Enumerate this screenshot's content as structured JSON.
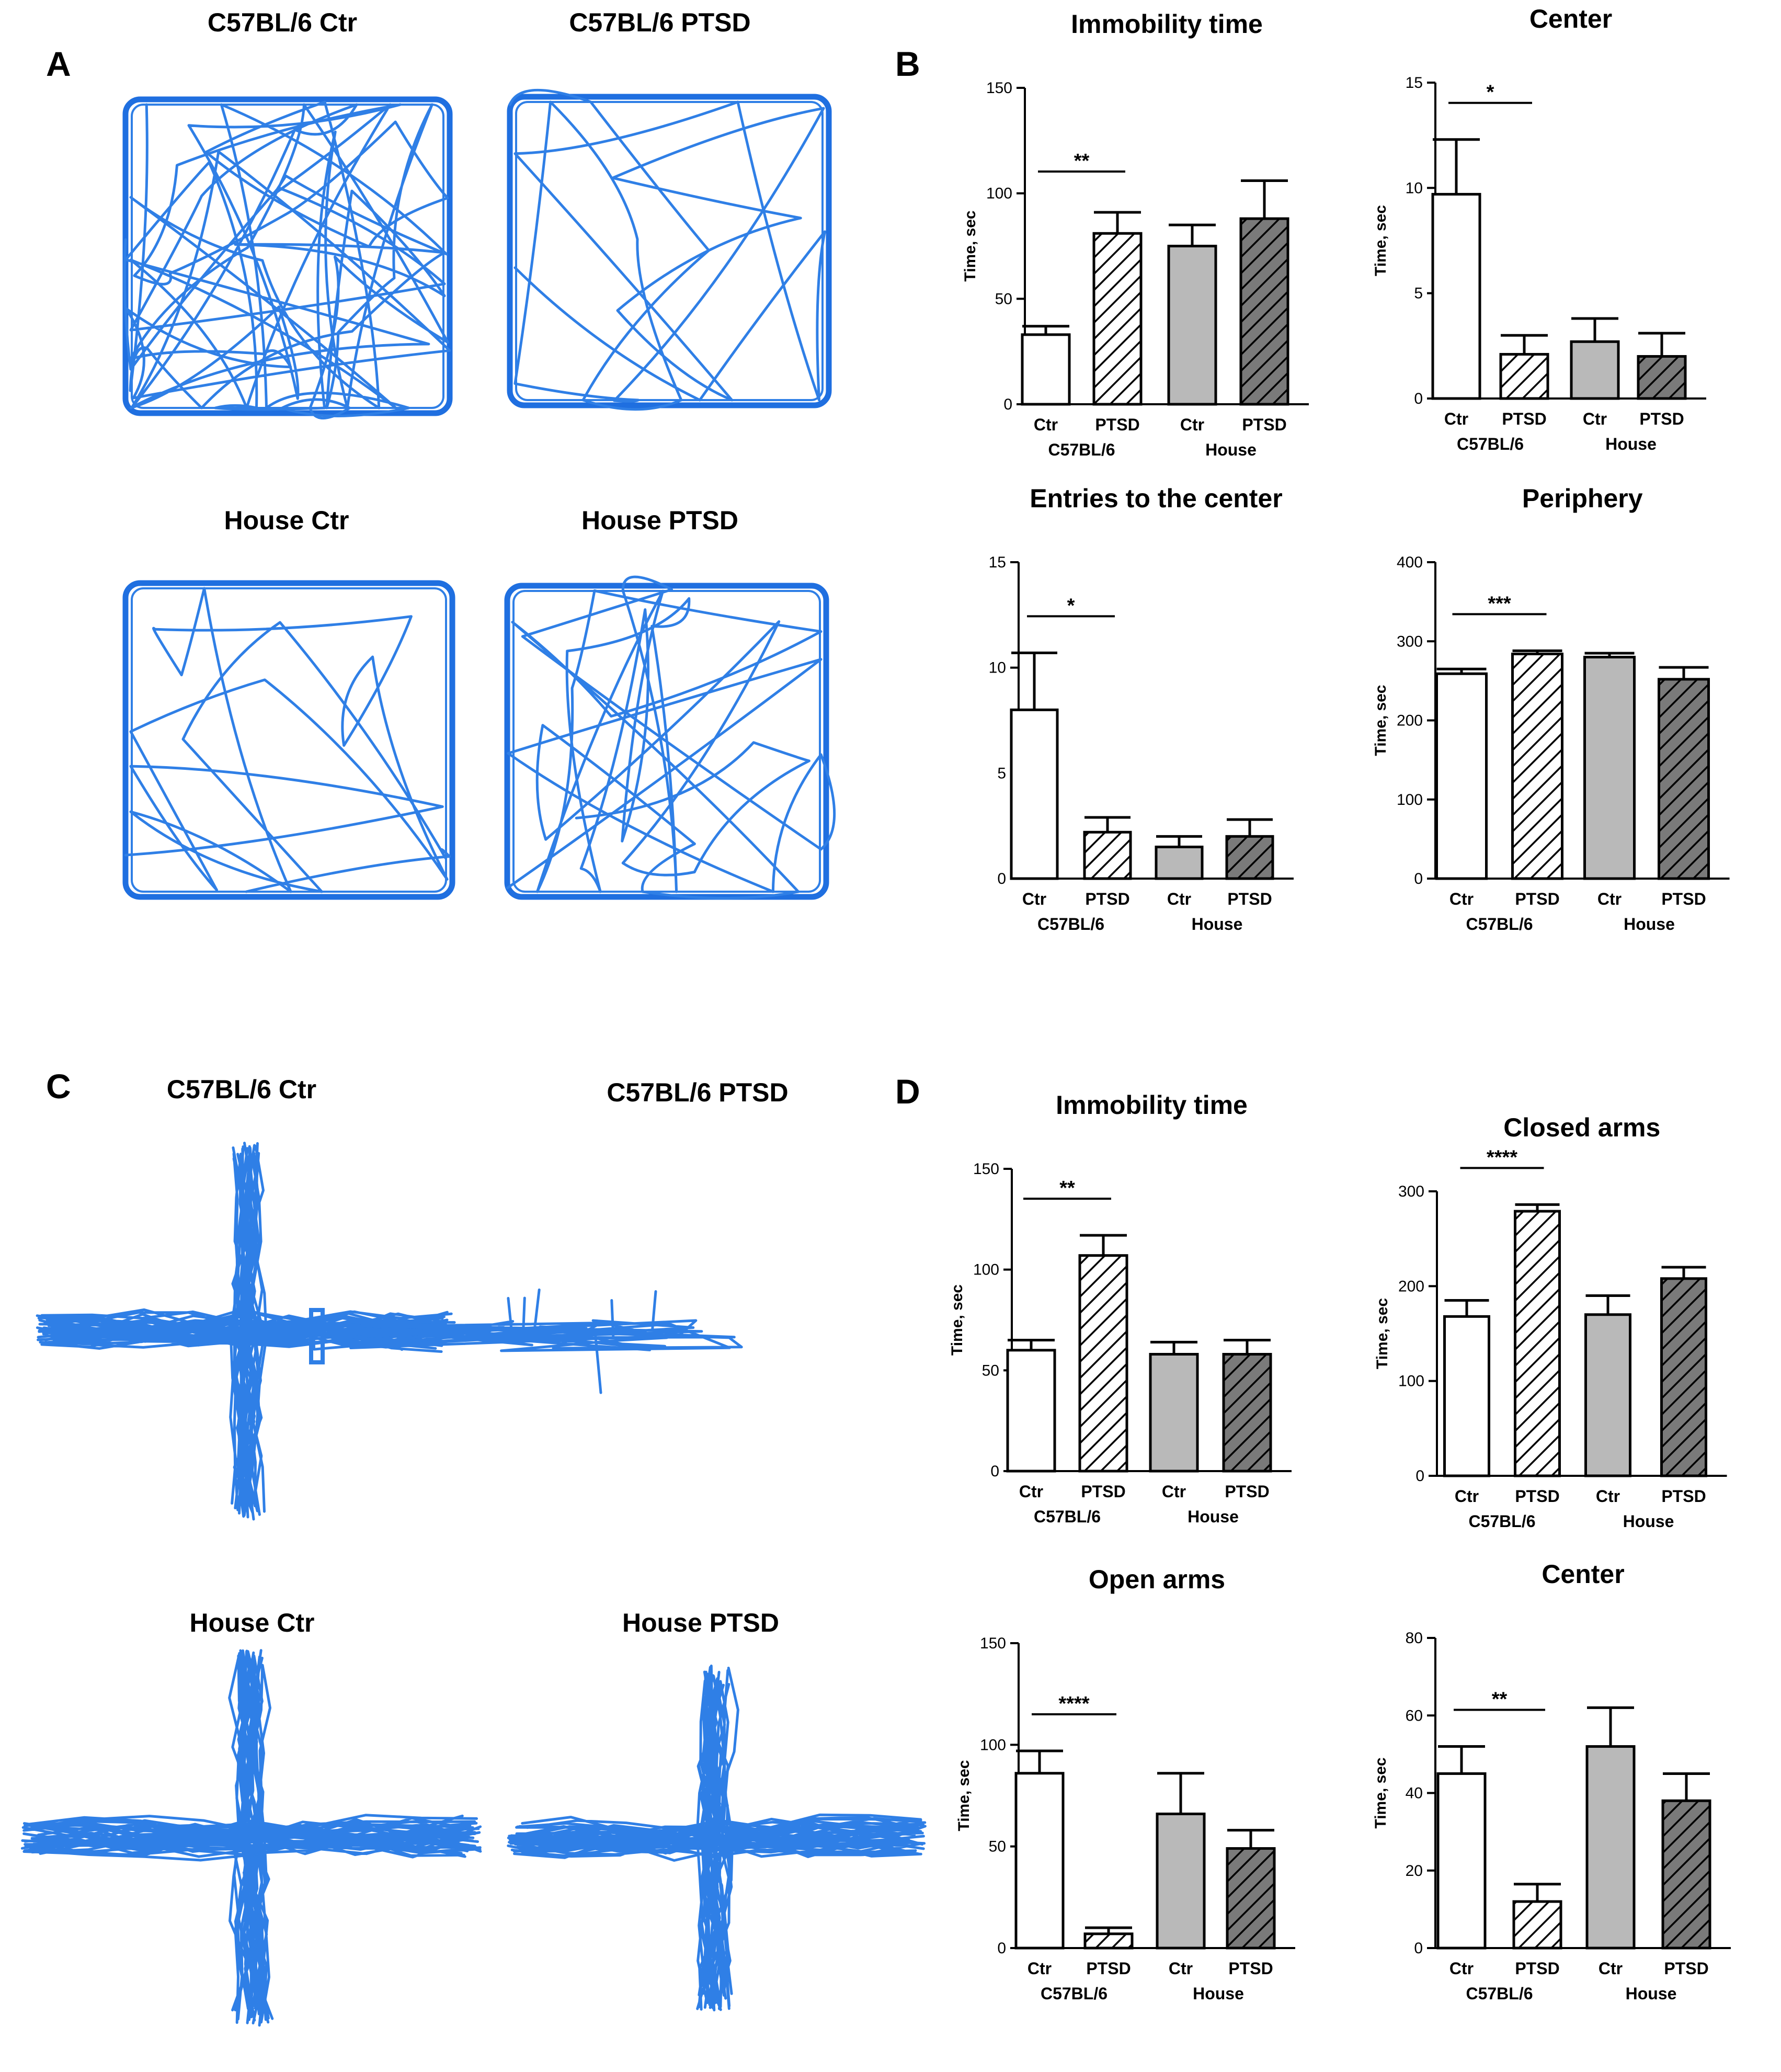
{
  "panels": {
    "A": {
      "letter": "A",
      "tracks": [
        {
          "title": "C57BL/6 Ctr",
          "density": "high"
        },
        {
          "title": "C57BL/6 PTSD",
          "density": "low"
        },
        {
          "title": "House Ctr",
          "density": "low"
        },
        {
          "title": "House PTSD",
          "density": "medium"
        }
      ]
    },
    "B": {
      "letter": "B"
    },
    "C": {
      "letter": "C",
      "tracks": [
        {
          "title": "C57BL/6 Ctr",
          "density": "high"
        },
        {
          "title": "C57BL/6 PTSD",
          "density": "closed-only"
        },
        {
          "title": "House Ctr",
          "density": "high"
        },
        {
          "title": "House PTSD",
          "density": "high"
        }
      ]
    },
    "D": {
      "letter": "D"
    }
  },
  "colors": {
    "track": "#2f7fe6",
    "bar_ctr_c57": "#ffffff",
    "bar_house_ctr": "#b9b9b9",
    "bar_house_ptsd": "#7a7a7a",
    "hatch": "#000000"
  },
  "chart_data": [
    {
      "panel": "B",
      "type": "bar",
      "title": "Immobility time",
      "ylabel": "Time, sec",
      "ylim": [
        0,
        150
      ],
      "yticks": [
        0,
        50,
        100,
        150
      ],
      "categories": [
        "Ctr",
        "PTSD",
        "Ctr",
        "PTSD"
      ],
      "groups": [
        "C57BL/6",
        "House"
      ],
      "values": [
        33,
        81,
        75,
        88
      ],
      "errors": [
        4,
        10,
        10,
        18
      ],
      "significance": {
        "label": "**",
        "between": [
          0,
          1
        ]
      }
    },
    {
      "panel": "B",
      "type": "bar",
      "title": "Center",
      "ylabel": "Time, sec",
      "ylim": [
        0,
        15
      ],
      "yticks": [
        0,
        5,
        10,
        15
      ],
      "categories": [
        "Ctr",
        "PTSD",
        "Ctr",
        "PTSD"
      ],
      "groups": [
        "C57BL/6",
        "House"
      ],
      "values": [
        9.7,
        2.1,
        2.7,
        2.0
      ],
      "errors": [
        2.6,
        0.9,
        1.1,
        1.1
      ],
      "significance": {
        "label": "*",
        "between": [
          0,
          1
        ]
      }
    },
    {
      "panel": "B",
      "type": "bar",
      "title": "Entries to the center",
      "ylabel": "",
      "ylim": [
        0,
        15
      ],
      "yticks": [
        0,
        5,
        10,
        15
      ],
      "categories": [
        "Ctr",
        "PTSD",
        "Ctr",
        "PTSD"
      ],
      "groups": [
        "C57BL/6",
        "House"
      ],
      "values": [
        8.0,
        2.2,
        1.5,
        2.0
      ],
      "errors": [
        2.7,
        0.7,
        0.5,
        0.8
      ],
      "significance": {
        "label": "*",
        "between": [
          0,
          1
        ]
      }
    },
    {
      "panel": "B",
      "type": "bar",
      "title": "Periphery",
      "ylabel": "Time, sec",
      "ylim": [
        0,
        400
      ],
      "yticks": [
        0,
        100,
        200,
        300,
        400
      ],
      "categories": [
        "Ctr",
        "PTSD",
        "Ctr",
        "PTSD"
      ],
      "groups": [
        "C57BL/6",
        "House"
      ],
      "values": [
        259,
        284,
        280,
        252
      ],
      "errors": [
        6,
        4,
        5,
        15
      ],
      "significance": {
        "label": "***",
        "between": [
          0,
          1
        ]
      }
    },
    {
      "panel": "D",
      "type": "bar",
      "title": "Immobility time",
      "ylabel": "Time, sec",
      "ylim": [
        0,
        150
      ],
      "yticks": [
        0,
        50,
        100,
        150
      ],
      "categories": [
        "Ctr",
        "PTSD",
        "Ctr",
        "PTSD"
      ],
      "groups": [
        "C57BL/6",
        "House"
      ],
      "values": [
        60,
        107,
        58,
        58
      ],
      "errors": [
        5,
        10,
        6,
        7
      ],
      "significance": {
        "label": "**",
        "between": [
          0,
          1
        ]
      }
    },
    {
      "panel": "D",
      "type": "bar",
      "title": "Closed arms",
      "ylabel": "Time, sec",
      "ylim": [
        0,
        300
      ],
      "yticks": [
        0,
        100,
        200,
        300
      ],
      "categories": [
        "Ctr",
        "PTSD",
        "Ctr",
        "PTSD"
      ],
      "groups": [
        "C57BL/6",
        "House"
      ],
      "values": [
        168,
        279,
        170,
        208
      ],
      "errors": [
        17,
        7,
        20,
        12
      ],
      "significance": {
        "label": "****",
        "between": [
          0,
          1
        ]
      }
    },
    {
      "panel": "D",
      "type": "bar",
      "title": "Open arms",
      "ylabel": "Time, sec",
      "ylim": [
        0,
        150
      ],
      "yticks": [
        0,
        50,
        100,
        150
      ],
      "categories": [
        "Ctr",
        "PTSD",
        "Ctr",
        "PTSD"
      ],
      "groups": [
        "C57BL/6",
        "House"
      ],
      "values": [
        86,
        7,
        66,
        49
      ],
      "errors": [
        11,
        3,
        20,
        9
      ],
      "significance": {
        "label": "****",
        "between": [
          0,
          1
        ]
      }
    },
    {
      "panel": "D",
      "type": "bar",
      "title": "Center",
      "ylabel": "Time, sec",
      "ylim": [
        0,
        80
      ],
      "yticks": [
        0,
        20,
        40,
        60,
        80
      ],
      "categories": [
        "Ctr",
        "PTSD",
        "Ctr",
        "PTSD"
      ],
      "groups": [
        "C57BL/6",
        "House"
      ],
      "values": [
        45,
        12,
        52,
        38
      ],
      "errors": [
        7,
        4.5,
        10,
        7
      ],
      "significance": {
        "label": "**",
        "between": [
          0,
          1
        ]
      }
    }
  ]
}
